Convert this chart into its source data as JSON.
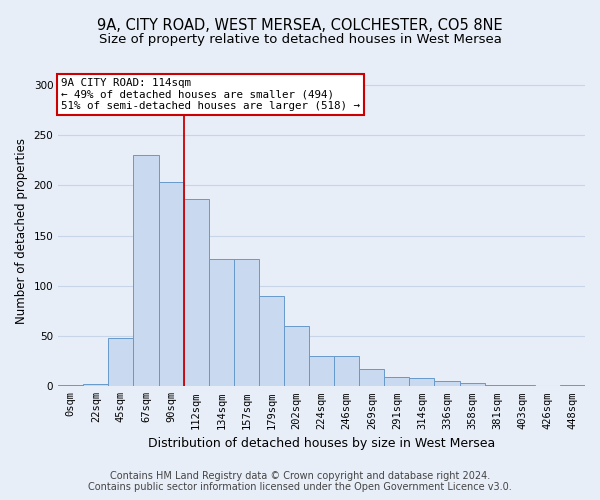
{
  "title_line1": "9A, CITY ROAD, WEST MERSEA, COLCHESTER, CO5 8NE",
  "title_line2": "Size of property relative to detached houses in West Mersea",
  "xlabel": "Distribution of detached houses by size in West Mersea",
  "ylabel": "Number of detached properties",
  "footer_line1": "Contains HM Land Registry data © Crown copyright and database right 2024.",
  "footer_line2": "Contains public sector information licensed under the Open Government Licence v3.0.",
  "bar_labels": [
    "0sqm",
    "22sqm",
    "45sqm",
    "67sqm",
    "90sqm",
    "112sqm",
    "134sqm",
    "157sqm",
    "179sqm",
    "202sqm",
    "224sqm",
    "246sqm",
    "269sqm",
    "291sqm",
    "314sqm",
    "336sqm",
    "358sqm",
    "381sqm",
    "403sqm",
    "426sqm",
    "448sqm"
  ],
  "bar_values": [
    1,
    2,
    48,
    230,
    203,
    187,
    127,
    127,
    90,
    60,
    30,
    30,
    17,
    9,
    8,
    5,
    3,
    1,
    1,
    0,
    1
  ],
  "bar_color": "#c9d9ef",
  "bar_edge_color": "#6699cc",
  "bar_edge_width": 0.7,
  "grid_color": "#c8d4e8",
  "bg_color": "#e8eef8",
  "red_line_x": 4.5,
  "red_line_color": "#cc0000",
  "annotation_text": "9A CITY ROAD: 114sqm\n← 49% of detached houses are smaller (494)\n51% of semi-detached houses are larger (518) →",
  "annotation_box_color": "white",
  "annotation_box_edge": "#cc0000",
  "ylim": [
    0,
    310
  ],
  "yticks": [
    0,
    50,
    100,
    150,
    200,
    250,
    300
  ],
  "title_fontsize": 10.5,
  "subtitle_fontsize": 9.5,
  "xlabel_fontsize": 9,
  "ylabel_fontsize": 8.5,
  "tick_fontsize": 7.5,
  "annotation_fontsize": 7.8,
  "footer_fontsize": 7
}
